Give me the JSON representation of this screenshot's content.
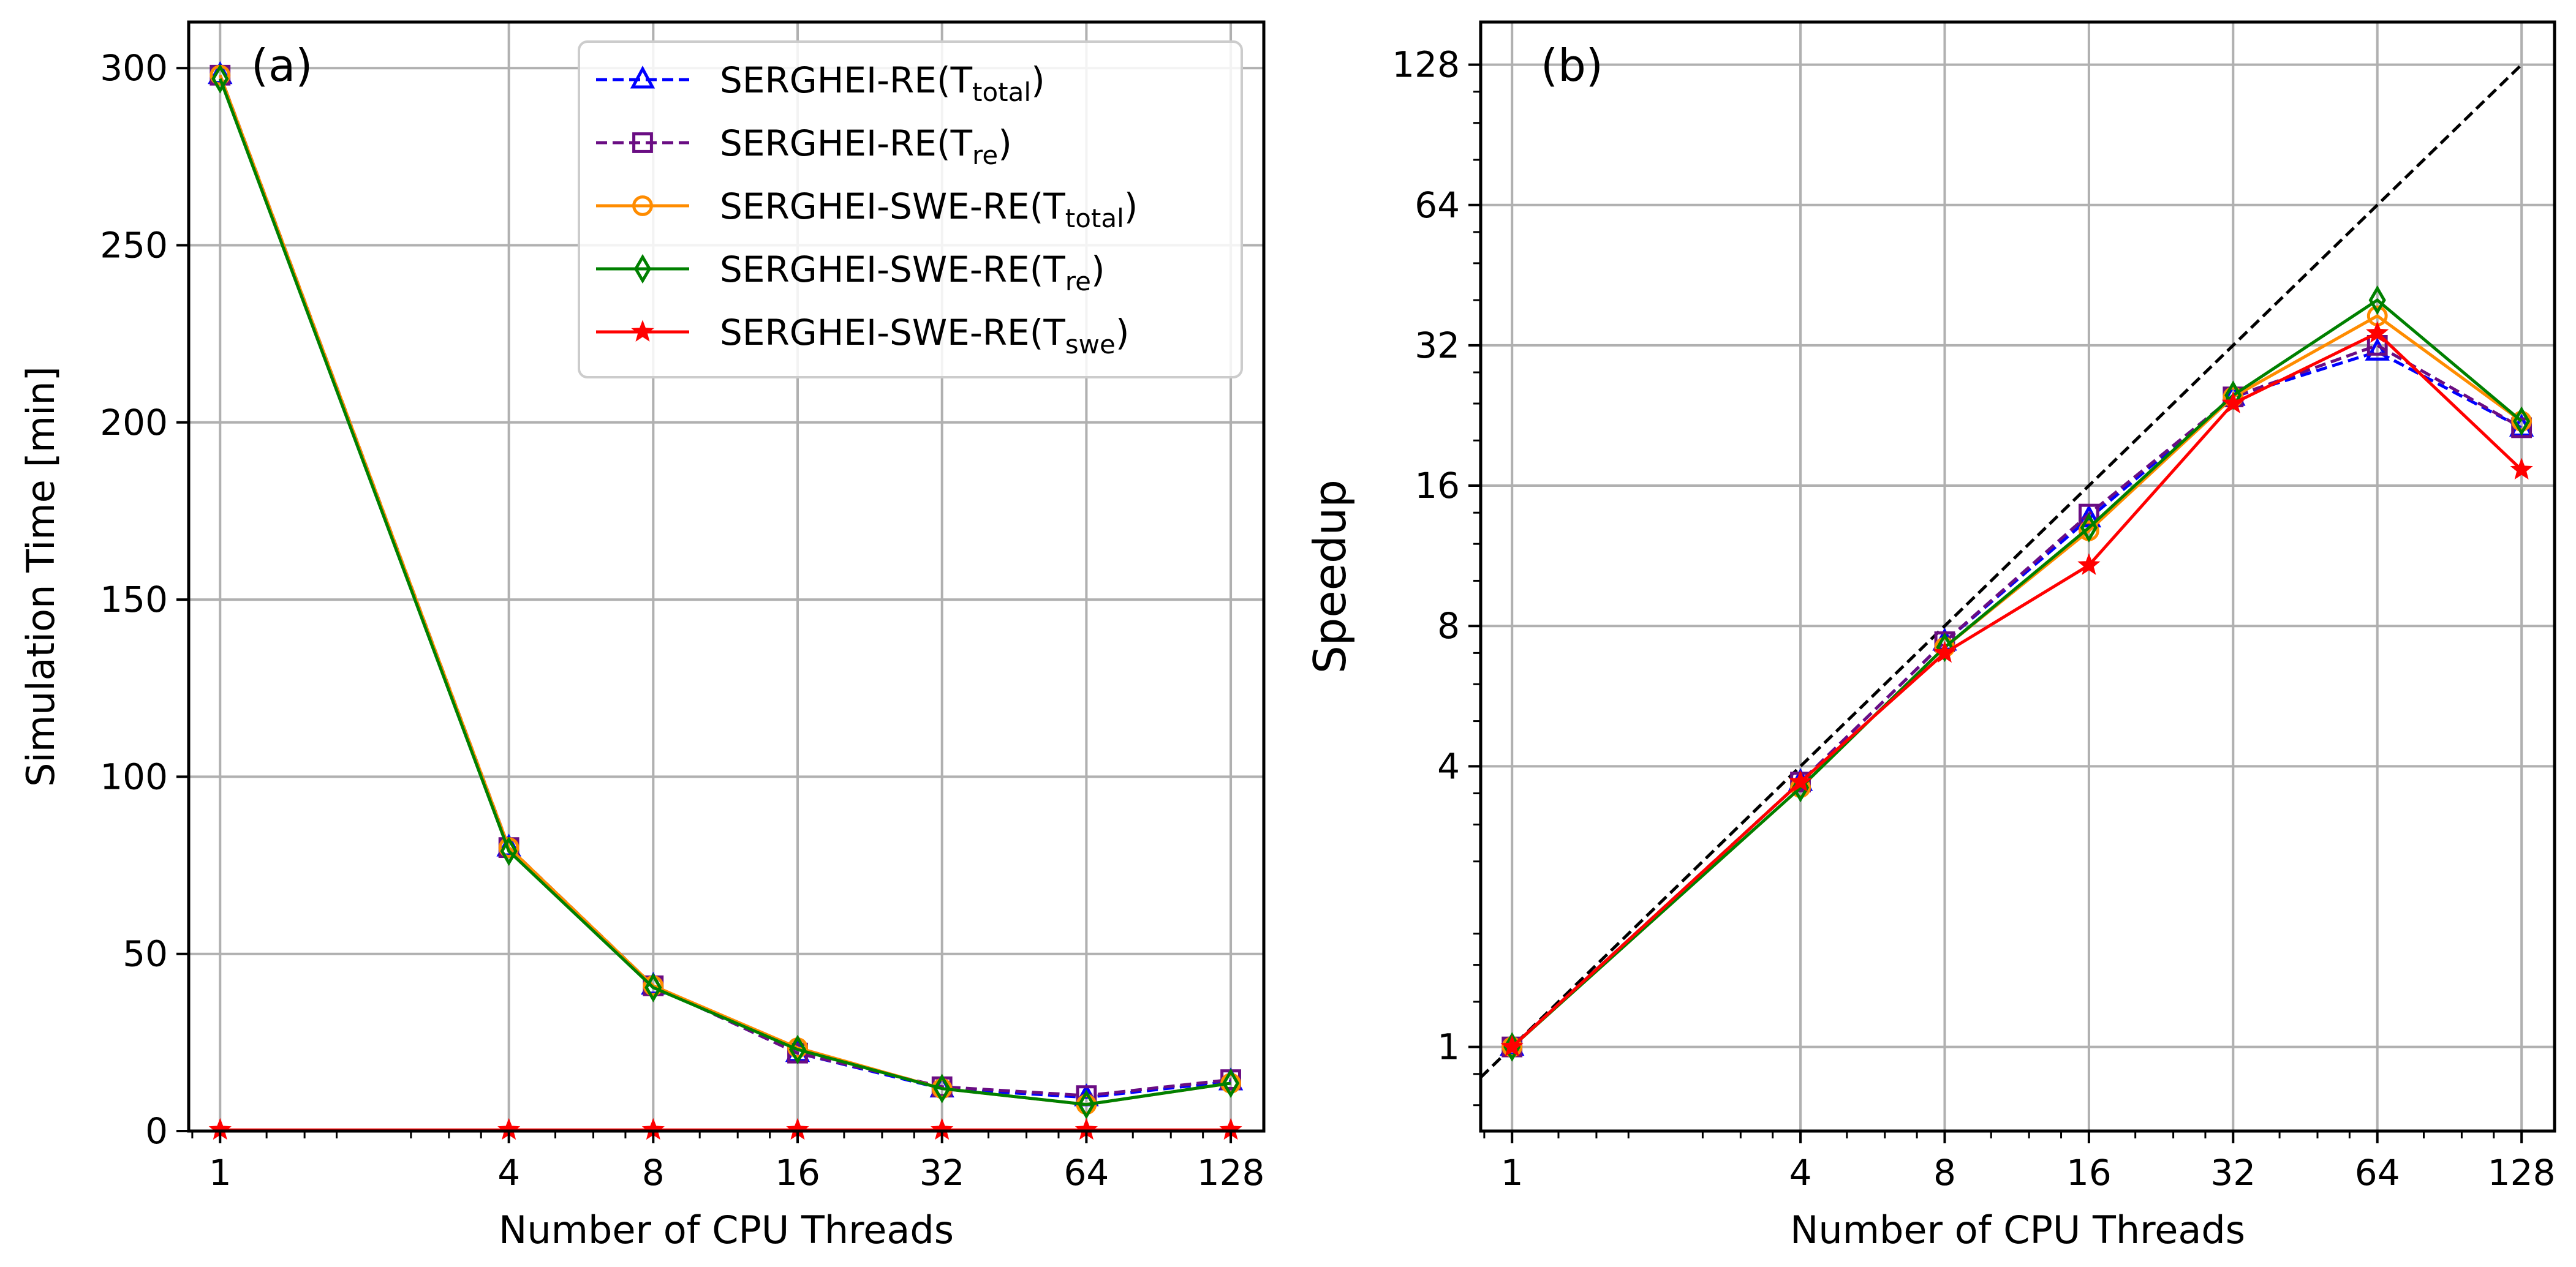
{
  "chart_data": [
    {
      "type": "line",
      "panel_label": "(a)",
      "xlabel": "Number of CPU Threads",
      "ylabel": "Simulation Time [min]",
      "x": [
        1,
        4,
        8,
        16,
        32,
        64,
        128
      ],
      "x_ticks": [
        "1",
        "4",
        "8",
        "16",
        "32",
        "64",
        "128"
      ],
      "x_scale": "log2",
      "xlim": [
        0.86,
        150
      ],
      "y_ticks": [
        "0",
        "50",
        "100",
        "150",
        "200",
        "250",
        "300"
      ],
      "ylim": [
        0,
        313
      ],
      "grid": true,
      "legend_position": "top-right",
      "series": [
        {
          "name": "SERGHEI-RE(T",
          "sub": "total",
          "tail": ")",
          "color": "#0000ff",
          "dash": true,
          "marker": "triangle",
          "values": [
            298,
            80,
            41,
            22,
            12,
            9.5,
            14
          ]
        },
        {
          "name": "SERGHEI-RE(T",
          "sub": "re",
          "tail": ")",
          "color": "#6a0d83",
          "dash": true,
          "marker": "square",
          "values": [
            298,
            80,
            41,
            22,
            12.5,
            10,
            14.5
          ]
        },
        {
          "name": "SERGHEI-SWE-RE(T",
          "sub": "total",
          "tail": ")",
          "color": "#ff8c00",
          "dash": false,
          "marker": "circle",
          "values": [
            298,
            80,
            41,
            23.5,
            12,
            7.5,
            13.5
          ]
        },
        {
          "name": "SERGHEI-SWE-RE(T",
          "sub": "re",
          "tail": ")",
          "color": "#008000",
          "dash": false,
          "marker": "diamond",
          "values": [
            297,
            79,
            40.5,
            23,
            12,
            7.5,
            13.5
          ]
        },
        {
          "name": "SERGHEI-SWE-RE(T",
          "sub": "swe",
          "tail": ")",
          "color": "#ff0000",
          "dash": false,
          "marker": "star",
          "values": [
            0.3,
            0.3,
            0.3,
            0.3,
            0.3,
            0.3,
            0.3
          ]
        }
      ]
    },
    {
      "type": "line",
      "panel_label": "(b)",
      "xlabel": "Number of CPU Threads",
      "ylabel": "Speedup",
      "x": [
        1,
        4,
        8,
        16,
        32,
        64,
        128
      ],
      "x_ticks": [
        "1",
        "4",
        "8",
        "16",
        "32",
        "64",
        "128"
      ],
      "x_scale": "log2",
      "xlim": [
        0.86,
        150
      ],
      "y_scale": "log2",
      "y_ticks": [
        "1",
        "4",
        "8",
        "16",
        "32",
        "64",
        "128"
      ],
      "y_tick_values": [
        1,
        4,
        8,
        16,
        32,
        64,
        128
      ],
      "ylim": [
        0.66,
        158
      ],
      "grid": true,
      "reference_line": {
        "color": "#000000",
        "dash": true,
        "x": [
          0.86,
          128
        ],
        "y": [
          0.86,
          128
        ]
      },
      "series": [
        {
          "color": "#0000ff",
          "dash": true,
          "marker": "triangle",
          "values": [
            1,
            3.7,
            7.4,
            13.6,
            24.8,
            31,
            21.3
          ]
        },
        {
          "color": "#6a0d83",
          "dash": true,
          "marker": "square",
          "values": [
            1,
            3.7,
            7.4,
            13.9,
            24.8,
            32,
            21.3
          ]
        },
        {
          "color": "#ff8c00",
          "dash": false,
          "marker": "circle",
          "values": [
            1,
            3.6,
            7.2,
            12.8,
            24.8,
            37,
            22
          ]
        },
        {
          "color": "#008000",
          "dash": false,
          "marker": "diamond",
          "values": [
            1,
            3.6,
            7.2,
            13,
            25,
            40,
            22
          ]
        },
        {
          "color": "#ff0000",
          "dash": false,
          "marker": "star",
          "values": [
            1,
            3.7,
            7,
            10.8,
            24,
            34,
            17.3
          ]
        }
      ]
    }
  ]
}
